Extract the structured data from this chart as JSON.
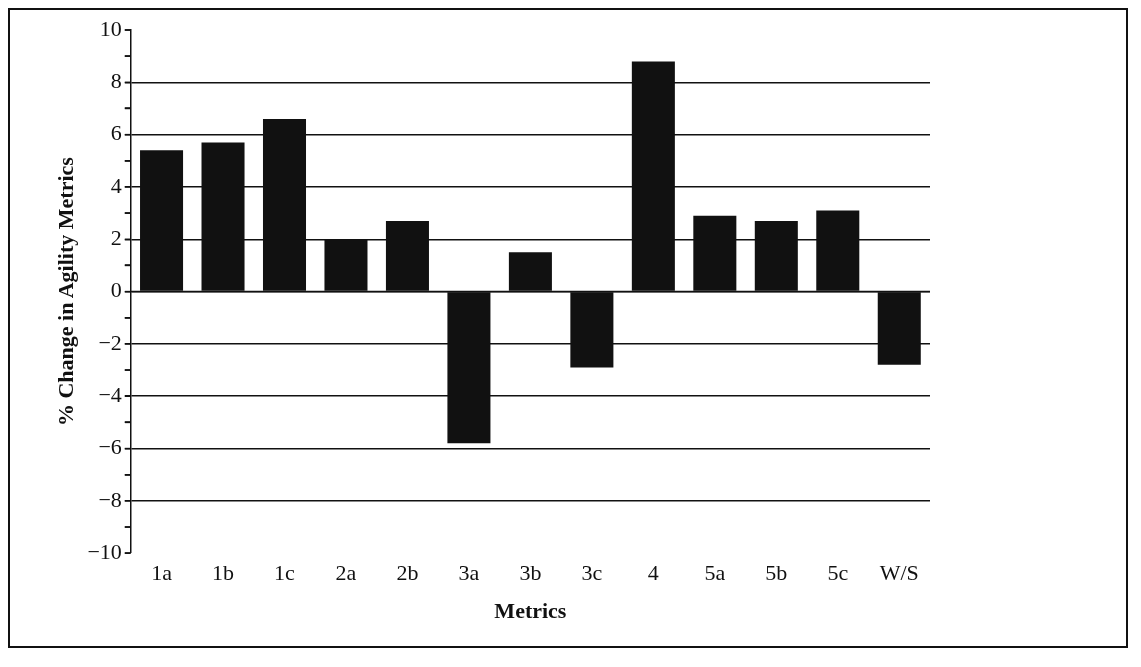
{
  "chart_data": {
    "type": "bar",
    "xlabel": "Metrics",
    "ylabel": "% Change in Agility Metrics",
    "categories": [
      "1a",
      "1b",
      "1c",
      "2a",
      "2b",
      "3a",
      "3b",
      "3c",
      "4",
      "5a",
      "5b",
      "5c",
      "W/S"
    ],
    "values": [
      5.4,
      5.7,
      6.6,
      2.0,
      2.7,
      -5.8,
      1.5,
      -2.9,
      8.8,
      2.9,
      2.7,
      3.1,
      -2.8
    ],
    "color": "#111111",
    "ylim": [
      -10,
      10
    ],
    "yticks": [
      -10,
      {
        "value": -9,
        "label": null
      },
      -8,
      {
        "value": -7,
        "label": null
      },
      -6,
      {
        "value": -5,
        "label": null
      },
      -4,
      {
        "value": -3,
        "label": null
      },
      -2,
      {
        "value": -1,
        "label": null
      },
      0,
      {
        "value": 1,
        "label": null
      },
      2,
      {
        "value": 3,
        "label": null
      },
      4,
      {
        "value": 5,
        "label": null
      },
      6,
      {
        "value": 7,
        "label": null
      },
      8,
      {
        "value": 9,
        "label": null
      },
      10
    ],
    "grid": "y",
    "legend": false
  }
}
